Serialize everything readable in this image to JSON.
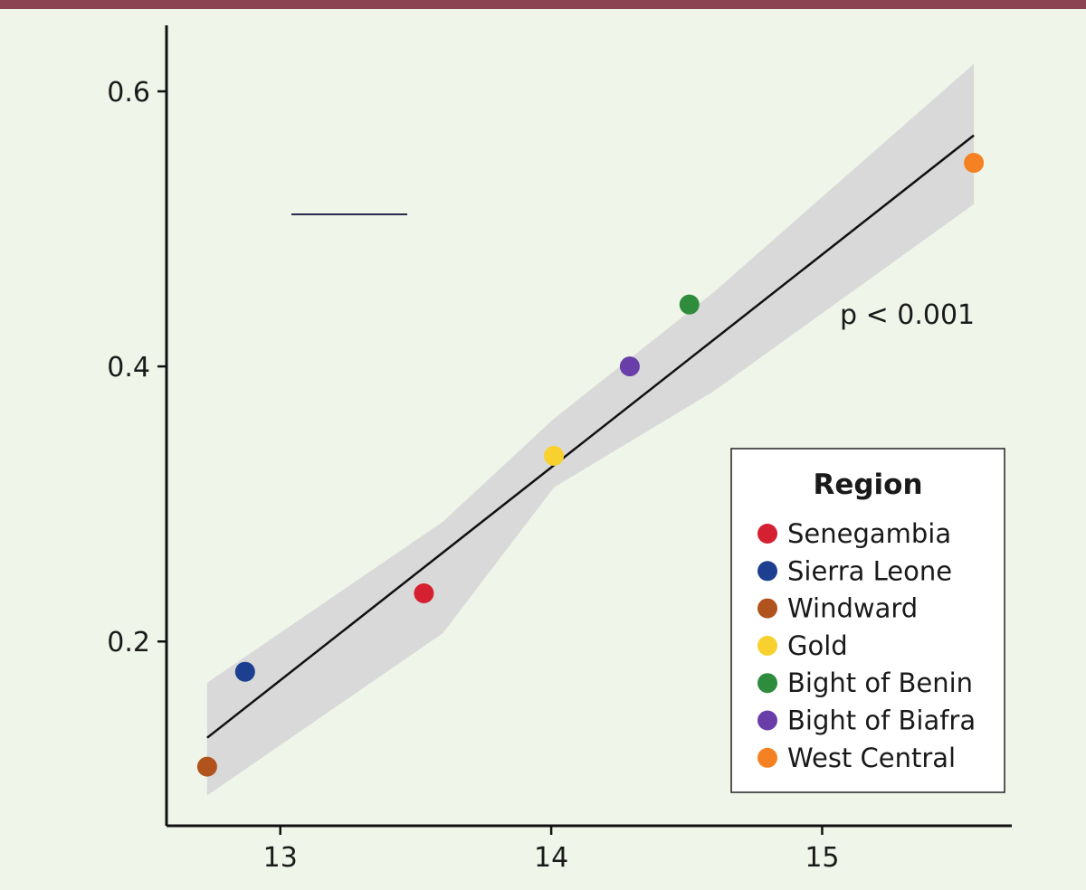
{
  "style": {
    "background": "#eff5e9",
    "top_bar_color": "#8b4452"
  },
  "chart_data": {
    "type": "scatter",
    "title": "",
    "xlabel": "",
    "ylabel": "",
    "xlim": [
      12.58,
      15.7
    ],
    "ylim": [
      0.066,
      0.648
    ],
    "xticks": [
      13,
      14,
      15
    ],
    "xtick_labels": [
      "13",
      "14",
      "15"
    ],
    "yticks": [
      0.2,
      0.4,
      0.6
    ],
    "ytick_labels": [
      "0.2",
      "0.4",
      "0.6"
    ],
    "grid": false,
    "legend": {
      "title": "Region",
      "position": "right"
    },
    "series": [
      {
        "name": "Senegambia",
        "color": "#d52031",
        "x": [
          13.53
        ],
        "y": [
          0.235
        ]
      },
      {
        "name": "Sierra Leone",
        "color": "#1d3f8f",
        "x": [
          12.87
        ],
        "y": [
          0.178
        ]
      },
      {
        "name": "Windward",
        "color": "#b0531d",
        "x": [
          12.73
        ],
        "y": [
          0.109
        ]
      },
      {
        "name": "Gold",
        "color": "#f8d12e",
        "x": [
          14.01
        ],
        "y": [
          0.335
        ]
      },
      {
        "name": "Bight of Benin",
        "color": "#2f8c3c",
        "x": [
          14.51
        ],
        "y": [
          0.445
        ]
      },
      {
        "name": "Bight of Biafra",
        "color": "#6a3ea8",
        "x": [
          14.29
        ],
        "y": [
          0.4
        ]
      },
      {
        "name": "West Central",
        "color": "#f58123",
        "x": [
          15.56
        ],
        "y": [
          0.548
        ]
      }
    ],
    "fit": {
      "line": {
        "x": [
          12.73,
          15.56
        ],
        "y": [
          0.13,
          0.568
        ]
      },
      "band_x": [
        12.73,
        13.6,
        14.01,
        14.6,
        15.56
      ],
      "band_upper": [
        0.17,
        0.287,
        0.362,
        0.454,
        0.62
      ],
      "band_lower": [
        0.088,
        0.206,
        0.312,
        0.382,
        0.518
      ],
      "line_color": "#111111",
      "band_color": "#d9d9d9"
    },
    "annotations": [
      {
        "text": "p < 0.001"
      }
    ]
  }
}
